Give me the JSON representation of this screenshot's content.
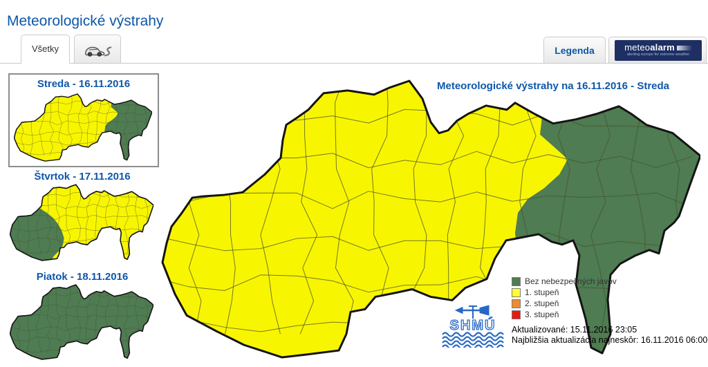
{
  "page": {
    "title": "Meteorologické výstrahy"
  },
  "tabs": {
    "all_label": "Všetky",
    "driving_tab_icon": "car-road-icon"
  },
  "header": {
    "legend_label": "Legenda",
    "meteoalarm": {
      "regular": "meteo",
      "bold": "alarm",
      "tagline": "alerting europe for extreme weather",
      "background": "#1E2F63"
    }
  },
  "sidebar": {
    "days": [
      {
        "label": "Streda - 16.11.2016",
        "selected": true,
        "map": "streda"
      },
      {
        "label": "Štvrtok - 17.11.2016",
        "selected": false,
        "map": "stvrtok"
      },
      {
        "label": "Piatok - 18.11.2016",
        "selected": false,
        "map": "piatok"
      }
    ]
  },
  "main_map": {
    "title": "Meteorologické výstrahy na 16.11.2016 - Streda",
    "map": "streda"
  },
  "legend": {
    "items": [
      {
        "color": "#4F7C52",
        "label": "Bez nebezpečných javov"
      },
      {
        "color": "#FFFF2E",
        "label": "1. stupeň"
      },
      {
        "color": "#EF8A35",
        "label": "2. stupeň"
      },
      {
        "color": "#EE1515",
        "label": "3. stupeň"
      }
    ]
  },
  "status": {
    "updated": "Aktualizované: 15.11.2016 23:05",
    "next_update": "Najbližšia aktualizácia najneskôr: 16.11.2016 06:00"
  },
  "logo": {
    "shmu_text": "SHMÚ"
  },
  "icons": {
    "driving": "car-road-icon",
    "logo": "shmu-logo"
  },
  "colors": {
    "warning_yellow": "#F8F500",
    "safe_green": "#4F7C52",
    "title_blue": "#0D57A9",
    "logo_blue": "#2668C4",
    "map_border": "#141414"
  }
}
